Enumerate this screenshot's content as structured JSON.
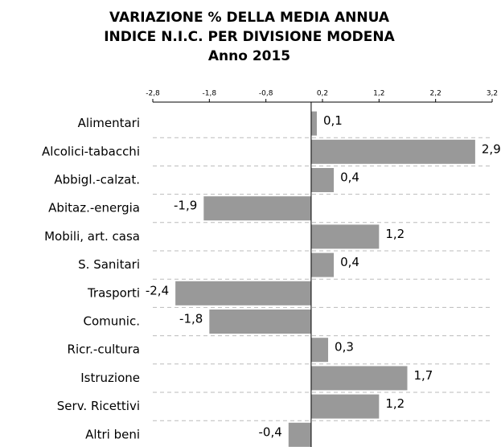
{
  "chart_data": {
    "type": "bar",
    "orientation": "horizontal",
    "title": [
      "VARIAZIONE  % DELLA MEDIA ANNUA",
      "INDICE N.I.C. PER DIVISIONE MODENA",
      "Anno 2015"
    ],
    "categories": [
      "Alimentari",
      "Alcolici-tabacchi",
      "Abbigl.-calzat.",
      "Abitaz.-energia",
      "Mobili, art. casa",
      "S. Sanitari",
      "Trasporti",
      "Comunic.",
      "Ricr.-cultura",
      "Istruzione",
      "Serv. Ricettivi",
      "Altri beni"
    ],
    "values": [
      0.1,
      2.9,
      0.4,
      -1.9,
      1.2,
      0.4,
      -2.4,
      -1.8,
      0.3,
      1.7,
      1.2,
      -0.4
    ],
    "value_labels": [
      "0,1",
      "2,9",
      "0,4",
      "-1,9",
      "1,2",
      "0,4",
      "-2,4",
      "-1,8",
      "0,3",
      "1,7",
      "1,2",
      "-0,4"
    ],
    "color": "#999999",
    "xlim": [
      -2.8,
      3.2
    ],
    "xticks": [
      {
        "value": -2.8,
        "label": "-2,8"
      },
      {
        "value": -1.8,
        "label": "-1,8"
      },
      {
        "value": -0.8,
        "label": "-0,8"
      },
      {
        "value": 0.2,
        "label": "0,2"
      },
      {
        "value": 1.2,
        "label": "1,2"
      },
      {
        "value": 2.2,
        "label": "2,2"
      },
      {
        "value": 3.2,
        "label": "3,2"
      }
    ]
  }
}
